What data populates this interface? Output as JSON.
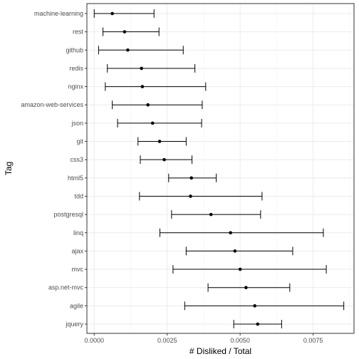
{
  "chart_data": {
    "type": "errorbar",
    "xlabel": "# Disliked / Total",
    "ylabel": "Tag",
    "xlim": [
      -0.00025,
      0.0089
    ],
    "xticks": [
      0,
      0.0025,
      0.005,
      0.0075
    ],
    "xtick_labels": [
      "0.0000",
      "0.0025",
      "0.0050",
      "0.0075"
    ],
    "grid": true,
    "categories": [
      "machine-learning",
      "rest",
      "github",
      "redis",
      "nginx",
      "amazon-web-services",
      "json",
      "git",
      "css3",
      "html5",
      "tdd",
      "postgresql",
      "linq",
      "ajax",
      "mvc",
      "asp.net-mvc",
      "agile",
      "jquery"
    ],
    "series": [
      {
        "values": [
          0.00062,
          0.00104,
          0.00115,
          0.00162,
          0.00165,
          0.00184,
          0.002,
          0.00224,
          0.0024,
          0.00333,
          0.0033,
          0.004,
          0.00467,
          0.00482,
          0.005,
          0.0052,
          0.0055,
          0.0056
        ],
        "lower": [
          0.0,
          0.0003,
          0.00015,
          0.00045,
          0.00038,
          0.00062,
          0.0008,
          0.0015,
          0.00158,
          0.00255,
          0.00155,
          0.00265,
          0.00225,
          0.00315,
          0.0027,
          0.0039,
          0.0031,
          0.00478
        ],
        "upper": [
          0.00205,
          0.00222,
          0.00305,
          0.00345,
          0.00382,
          0.0037,
          0.00368,
          0.00315,
          0.00335,
          0.00418,
          0.00575,
          0.0057,
          0.00785,
          0.0068,
          0.00795,
          0.0067,
          0.00855,
          0.00642
        ]
      }
    ]
  }
}
